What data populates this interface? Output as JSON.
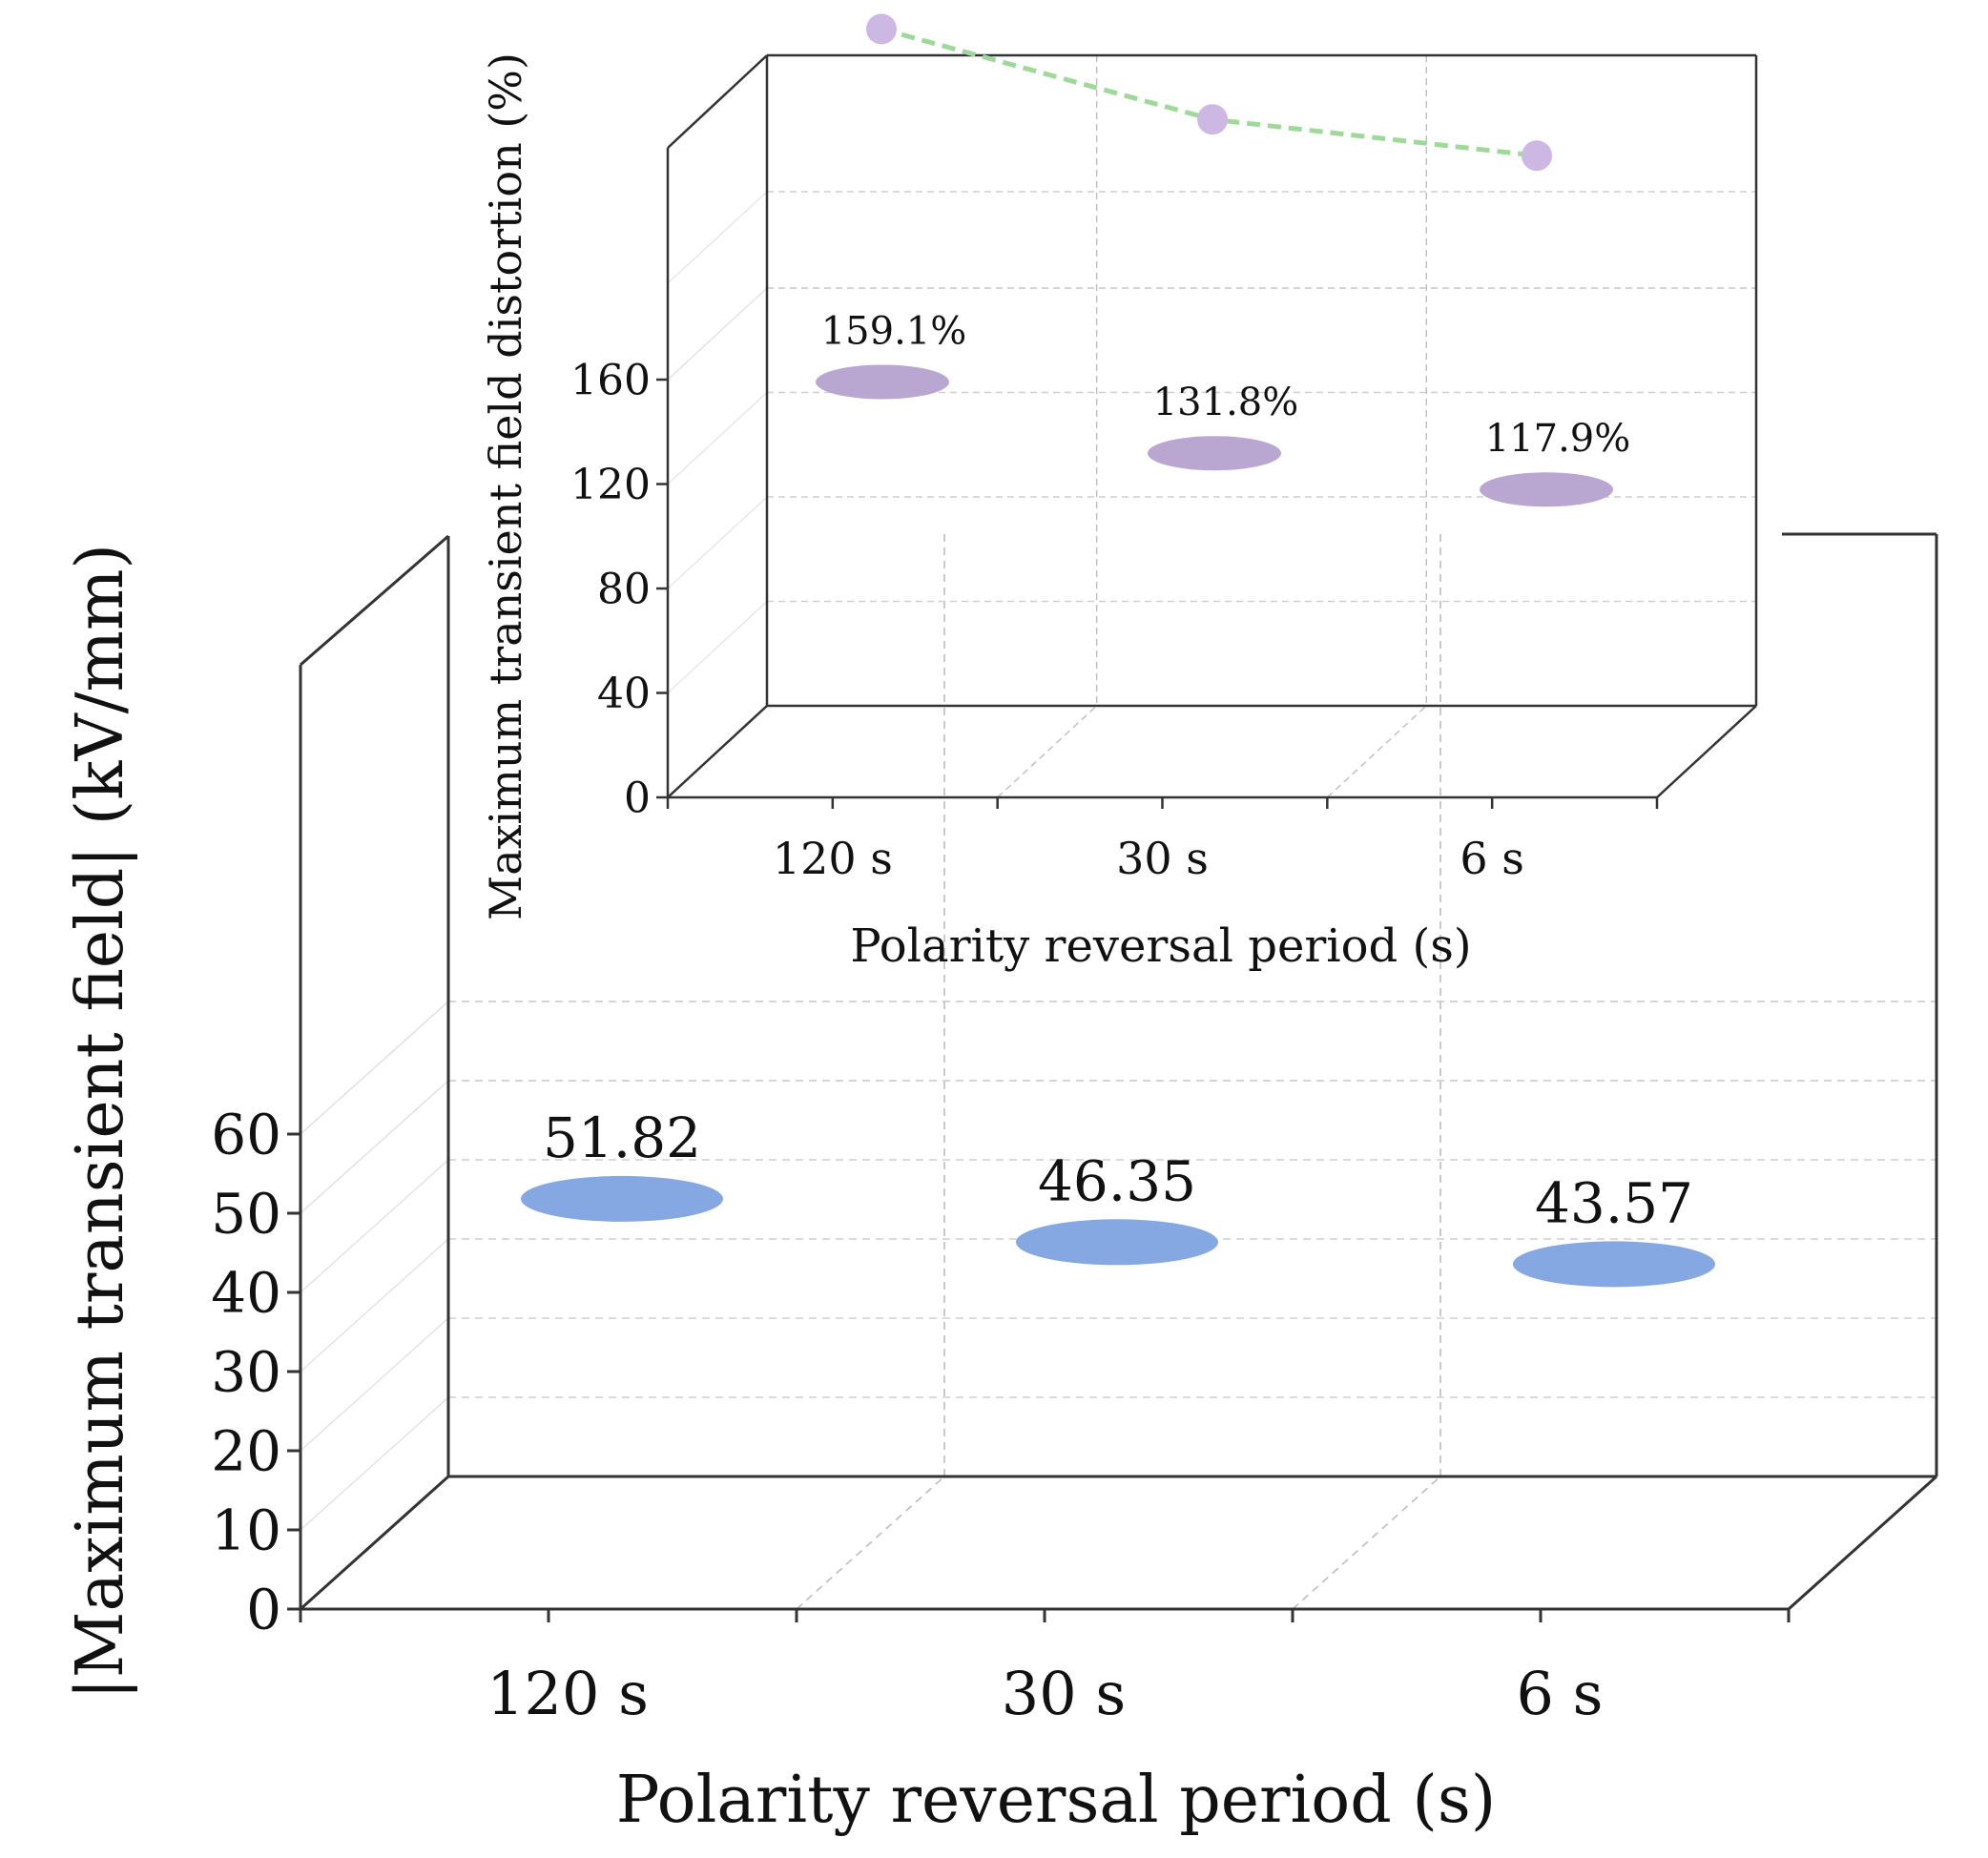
{
  "chart_data": [
    {
      "type": "bar",
      "style": "3d-cylinder",
      "xlabel": "Polarity reversal period (s)",
      "ylabel": "|Maximum transient field| (kV/mm)",
      "categories": [
        "120 s",
        "30 s",
        "6 s"
      ],
      "values": [
        51.82,
        46.35,
        43.57
      ],
      "data_labels": [
        "51.82",
        "46.35",
        "43.57"
      ],
      "ylim": [
        0,
        60
      ],
      "yticks": [
        "0",
        "10",
        "20",
        "30",
        "40",
        "50",
        "60"
      ],
      "bar_color": "#9dbff7",
      "grid": true,
      "legend": "none"
    },
    {
      "type": "bar",
      "style": "3d-cylinder with line overlay",
      "position": "inset",
      "xlabel": "Polarity reversal period (s)",
      "ylabel": "Maximum transient field distortion (%)",
      "categories": [
        "120 s",
        "30 s",
        "6 s"
      ],
      "values": [
        159.1,
        131.8,
        117.9
      ],
      "data_labels": [
        "159.1%",
        "131.8%",
        "117.9%"
      ],
      "ylim": [
        0,
        160
      ],
      "yticks": [
        "0",
        "40",
        "80",
        "120",
        "160"
      ],
      "bar_color": "#d3c4e6",
      "line_color": "#9fd99a",
      "marker_color": "#cdb8e4",
      "grid": true,
      "legend": "none"
    }
  ]
}
